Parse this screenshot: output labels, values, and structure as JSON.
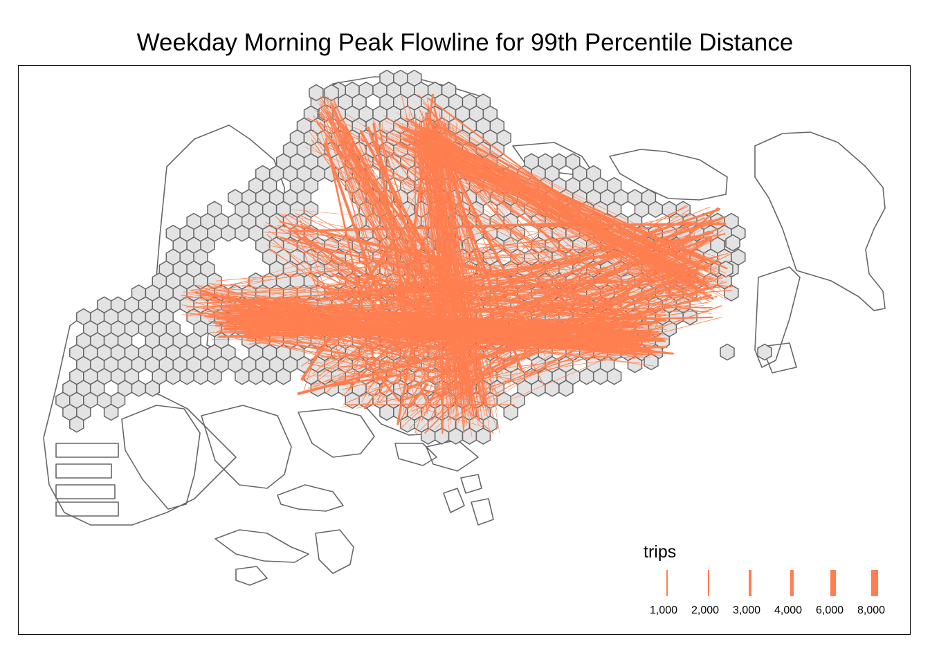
{
  "title": "Weekday Morning Peak Flowline for 99th Percentile Distance",
  "colors": {
    "flowline": "#ff7f50",
    "hexagon_fill": "#e3e3e3",
    "boundary": "#666666",
    "frame": "#000000"
  },
  "legend": {
    "title": "trips",
    "items": [
      {
        "label": "1,000",
        "value": 1000
      },
      {
        "label": "2,000",
        "value": 2000
      },
      {
        "label": "3,000",
        "value": 3000
      },
      {
        "label": "4,000",
        "value": 4000
      },
      {
        "label": "6,000",
        "value": 6000
      },
      {
        "label": "8,000",
        "value": 8000
      }
    ]
  }
}
